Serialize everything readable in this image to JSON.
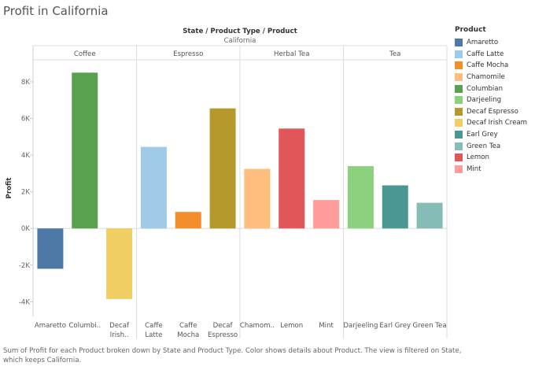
{
  "title": "Profit in California",
  "caption": "Sum of Profit for each Product broken down by State and Product Type.  Color shows details about Product. The view is filtered on State, which keeps California.",
  "legend_title": "Product",
  "chart_data": {
    "type": "bar",
    "header_title": "State / Product Type / Product",
    "state": "California",
    "ylabel": "Profit",
    "ylim": [
      -4800,
      9200
    ],
    "yticks": [
      -4000,
      -2000,
      0,
      2000,
      4000,
      6000,
      8000
    ],
    "ytick_labels": [
      "-4K",
      "-2K",
      "0K",
      "2K",
      "4K",
      "6K",
      "8K"
    ],
    "groups": [
      {
        "name": "Coffee",
        "bars": [
          {
            "product": "Amaretto",
            "label": "Amaretto",
            "value": -2200,
            "color": "#4e79a7"
          },
          {
            "product": "Columbian",
            "label": "Columbi..",
            "value": 8500,
            "color": "#59a14f"
          },
          {
            "product": "Decaf Irish Cream",
            "label": "Decaf Irish..",
            "value": -3850,
            "color": "#f1ce63"
          }
        ]
      },
      {
        "name": "Espresso",
        "bars": [
          {
            "product": "Caffe Latte",
            "label": "Caffe Latte",
            "value": 4450,
            "color": "#a0cbe8"
          },
          {
            "product": "Caffe Mocha",
            "label": "Caffe Mocha",
            "value": 900,
            "color": "#f28e2b"
          },
          {
            "product": "Decaf Espresso",
            "label": "Decaf Espresso",
            "value": 6550,
            "color": "#b6992d"
          }
        ]
      },
      {
        "name": "Herbal Tea",
        "bars": [
          {
            "product": "Chamomile",
            "label": "Chamom..",
            "value": 3250,
            "color": "#ffbe7d"
          },
          {
            "product": "Lemon",
            "label": "Lemon",
            "value": 5450,
            "color": "#e15759"
          },
          {
            "product": "Mint",
            "label": "Mint",
            "value": 1550,
            "color": "#ff9d9a"
          }
        ]
      },
      {
        "name": "Tea",
        "bars": [
          {
            "product": "Darjeeling",
            "label": "Darjeeling",
            "value": 3400,
            "color": "#8cd17d"
          },
          {
            "product": "Earl Grey",
            "label": "Earl Grey",
            "value": 2350,
            "color": "#499894"
          },
          {
            "product": "Green Tea",
            "label": "Green Tea",
            "value": 1400,
            "color": "#86bcb6"
          }
        ]
      }
    ],
    "legend": [
      {
        "name": "Amaretto",
        "color": "#4e79a7"
      },
      {
        "name": "Caffe Latte",
        "color": "#a0cbe8"
      },
      {
        "name": "Caffe Mocha",
        "color": "#f28e2b"
      },
      {
        "name": "Chamomile",
        "color": "#ffbe7d"
      },
      {
        "name": "Columbian",
        "color": "#59a14f"
      },
      {
        "name": "Darjeeling",
        "color": "#8cd17d"
      },
      {
        "name": "Decaf Espresso",
        "color": "#b6992d"
      },
      {
        "name": "Decaf Irish Cream",
        "color": "#f1ce63"
      },
      {
        "name": "Earl Grey",
        "color": "#499894"
      },
      {
        "name": "Green Tea",
        "color": "#86bcb6"
      },
      {
        "name": "Lemon",
        "color": "#e15759"
      },
      {
        "name": "Mint",
        "color": "#ff9d9a"
      }
    ],
    "grid": false,
    "legend_position": "right"
  }
}
